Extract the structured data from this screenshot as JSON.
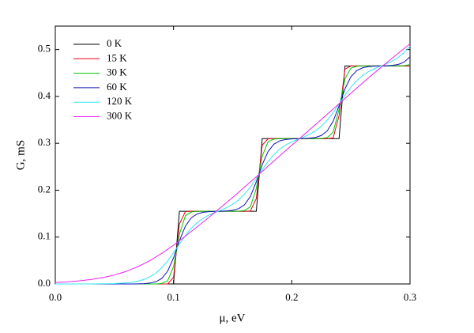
{
  "chart_data": {
    "type": "line",
    "x_label": "μ, eV",
    "y_label": "G, mS",
    "xlim": [
      0,
      0.3
    ],
    "ylim": [
      0,
      0.55
    ],
    "xticks": [
      {
        "value": 0,
        "label": "0.0"
      },
      0.1,
      0.2,
      0.3
    ],
    "yticks": [
      {
        "value": 0,
        "label": "0.0"
      },
      0.1,
      0.2,
      0.3,
      0.4,
      0.5
    ],
    "legend": "upper left",
    "x": [
      0,
      0.005,
      0.01,
      0.015,
      0.02,
      0.025,
      0.03,
      0.035,
      0.04,
      0.045,
      0.05,
      0.055,
      0.06,
      0.065,
      0.07,
      0.075,
      0.08,
      0.085,
      0.09,
      0.095,
      0.1,
      0.105,
      0.11,
      0.115,
      0.12,
      0.125,
      0.13,
      0.135,
      0.14,
      0.145,
      0.15,
      0.155,
      0.16,
      0.165,
      0.17,
      0.175,
      0.18,
      0.185,
      0.19,
      0.195,
      0.2,
      0.205,
      0.21,
      0.215,
      0.22,
      0.225,
      0.23,
      0.235,
      0.24,
      0.245,
      0.25,
      0.255,
      0.26,
      0.265,
      0.27,
      0.275,
      0.28,
      0.285,
      0.29,
      0.295,
      0.3
    ],
    "series": [
      {
        "name": "0 K",
        "color": "#000000",
        "values": [
          0,
          0,
          0,
          0,
          0,
          0,
          0,
          0,
          0,
          0,
          0,
          0,
          0,
          0,
          0,
          0,
          0,
          0,
          0,
          0,
          0,
          0.155,
          0.155,
          0.155,
          0.155,
          0.155,
          0.155,
          0.155,
          0.155,
          0.155,
          0.155,
          0.155,
          0.155,
          0.155,
          0.155,
          0.31,
          0.31,
          0.31,
          0.31,
          0.31,
          0.31,
          0.31,
          0.31,
          0.31,
          0.31,
          0.31,
          0.31,
          0.31,
          0.31,
          0.465,
          0.465,
          0.465,
          0.465,
          0.465,
          0.465,
          0.465,
          0.465,
          0.465,
          0.465,
          0.465,
          0.465
        ]
      },
      {
        "name": "15 K",
        "color": "#e8001a",
        "values": [
          0,
          0,
          0,
          0,
          0,
          0,
          0,
          0,
          0,
          0,
          0,
          0,
          0,
          0,
          0,
          0,
          0,
          0,
          0,
          0,
          0.0139,
          0.1277,
          0.1544,
          0.155,
          0.155,
          0.155,
          0.155,
          0.155,
          0.155,
          0.155,
          0.155,
          0.155,
          0.155,
          0.1556,
          0.1823,
          0.2961,
          0.3097,
          0.31,
          0.31,
          0.31,
          0.31,
          0.31,
          0.31,
          0.31,
          0.31,
          0.31,
          0.31,
          0.3115,
          0.359,
          0.4582,
          0.465,
          0.465,
          0.465,
          0.465,
          0.465,
          0.465,
          0.465,
          0.465,
          0.465,
          0.465,
          0.465
        ]
      },
      {
        "name": "30 K",
        "color": "#00c800",
        "values": [
          0,
          0,
          0,
          0,
          0,
          0,
          0,
          0,
          0,
          0,
          0,
          0,
          0,
          0,
          0,
          0,
          0,
          0.0001,
          0.001,
          0.0067,
          0.037,
          0.1061,
          0.1453,
          0.1535,
          0.1548,
          0.155,
          0.155,
          0.155,
          0.155,
          0.155,
          0.155,
          0.1552,
          0.1565,
          0.1647,
          0.2039,
          0.273,
          0.3033,
          0.309,
          0.3099,
          0.31,
          0.31,
          0.31,
          0.31,
          0.31,
          0.31,
          0.3103,
          0.3122,
          0.3239,
          0.3727,
          0.4378,
          0.4604,
          0.4643,
          0.4649,
          0.465,
          0.465,
          0.465,
          0.465,
          0.465,
          0.4651,
          0.4655,
          0.4682
        ]
      },
      {
        "name": "60 K",
        "color": "#1010b8",
        "values": [
          0,
          0,
          0,
          0,
          0,
          0,
          0,
          0,
          0,
          0,
          0,
          0,
          0,
          0.0001,
          0.0003,
          0.0007,
          0.0018,
          0.0046,
          0.0116,
          0.0272,
          0.0556,
          0.0923,
          0.1232,
          0.1411,
          0.1494,
          0.1528,
          0.1542,
          0.1547,
          0.1552,
          0.1558,
          0.1572,
          0.1606,
          0.1689,
          0.1868,
          0.2177,
          0.2544,
          0.2828,
          0.2984,
          0.3054,
          0.3082,
          0.3093,
          0.3098,
          0.3103,
          0.311,
          0.3126,
          0.3167,
          0.3265,
          0.347,
          0.38,
          0.4161,
          0.4419,
          0.4553,
          0.4612,
          0.4636,
          0.4645,
          0.465,
          0.4654,
          0.4662,
          0.4682,
          0.4731,
          0.4846
        ]
      },
      {
        "name": "120 K",
        "color": "#30e8f0",
        "values": [
          0,
          0,
          0,
          0,
          0,
          0.0001,
          0.0001,
          0.0002,
          0.0004,
          0.0006,
          0.0009,
          0.0015,
          0.0024,
          0.0038,
          0.0061,
          0.0097,
          0.0152,
          0.0232,
          0.0344,
          0.049,
          0.0665,
          0.0852,
          0.1032,
          0.1187,
          0.1309,
          0.1401,
          0.147,
          0.1525,
          0.1575,
          0.163,
          0.1699,
          0.1791,
          0.1914,
          0.2069,
          0.225,
          0.2438,
          0.2614,
          0.2763,
          0.2879,
          0.2966,
          0.3032,
          0.3085,
          0.3135,
          0.3192,
          0.3265,
          0.3363,
          0.3493,
          0.3654,
          0.3837,
          0.4025,
          0.4196,
          0.4339,
          0.4449,
          0.4531,
          0.4593,
          0.4645,
          0.4696,
          0.4755,
          0.4832,
          0.4936,
          0.5072
        ]
      },
      {
        "name": "300 K",
        "color": "#f020f0",
        "values": [
          0.0031,
          0.0038,
          0.0044,
          0.0055,
          0.0065,
          0.008,
          0.0094,
          0.0115,
          0.0135,
          0.0163,
          0.0191,
          0.023,
          0.0268,
          0.0319,
          0.0369,
          0.0433,
          0.0497,
          0.0574,
          0.0651,
          0.0739,
          0.0827,
          0.0923,
          0.1019,
          0.1119,
          0.1219,
          0.1322,
          0.1424,
          0.1528,
          0.1632,
          0.1739,
          0.1845,
          0.1955,
          0.2064,
          0.2176,
          0.2287,
          0.24,
          0.2513,
          0.2625,
          0.2737,
          0.2848,
          0.2958,
          0.3068,
          0.3177,
          0.3287,
          0.3397,
          0.3509,
          0.362,
          0.3733,
          0.3845,
          0.3957,
          0.4069,
          0.418,
          0.429,
          0.4397,
          0.4504,
          0.4609,
          0.4714,
          0.4817,
          0.492,
          0.5021,
          0.5122
        ]
      }
    ]
  }
}
